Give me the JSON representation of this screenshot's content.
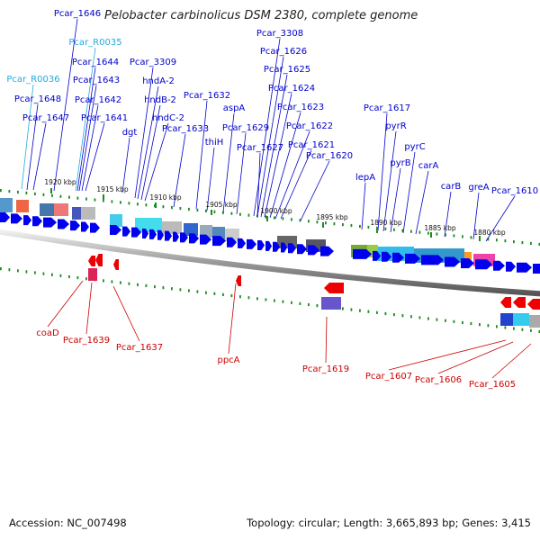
{
  "title": "Pelobacter carbinolicus DSM 2380, complete genome",
  "footer": {
    "accession": "Accession: NC_007498",
    "summary": "Topology: circular; Length: 3,665,893 bp; Genes: 3,415"
  },
  "colors": {
    "forward_label": "#0000cc",
    "reverse_label": "#cc0000",
    "rna_label": "#22aadd",
    "forward_arrow": "#0000ee",
    "reverse_arrow": "#ee0000"
  },
  "forward_genes": [
    "Pcar_1646",
    "Pcar_R0035",
    "Pcar_1644",
    "Pcar_1643",
    "Pcar_1642",
    "Pcar_1641",
    "Pcar_R0036",
    "Pcar_1648",
    "Pcar_1647",
    "dgt",
    "Pcar_3309",
    "hndA-2",
    "hndB-2",
    "hndC-2",
    "Pcar_1633",
    "Pcar_1632",
    "thiH",
    "aspA",
    "Pcar_1629",
    "Pcar_3308",
    "Pcar_1626",
    "Pcar_1625",
    "Pcar_1624",
    "Pcar_1623",
    "Pcar_1622",
    "Pcar_1621",
    "Pcar_1627",
    "Pcar_1620",
    "Pcar_1617",
    "pyrR",
    "pyrB",
    "pyrC",
    "carA",
    "lepA",
    "carB",
    "greA",
    "Pcar_1610"
  ],
  "reverse_genes": [
    "coaD",
    "Pcar_1639",
    "Pcar_1637",
    "ppcA",
    "Pcar_1619",
    "Pcar_1607",
    "Pcar_1606",
    "Pcar_1605"
  ],
  "scale_kbp": [
    "1920 kbp",
    "1915 kbp",
    "1910 kbp",
    "1905 kbp",
    "1900 kbp",
    "1895 kbp",
    "1890 kbp",
    "1885 kbp",
    "1880 kbp"
  ]
}
